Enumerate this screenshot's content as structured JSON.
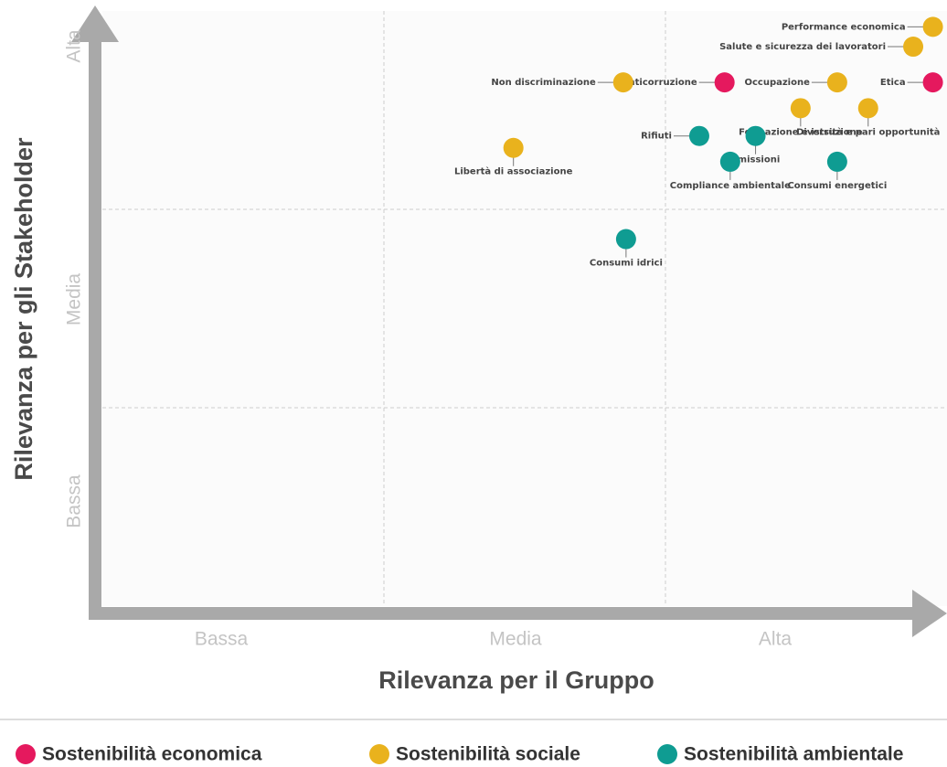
{
  "chart_data": {
    "type": "scatter",
    "xlabel": "Rilevanza per il Gruppo",
    "ylabel": "Rilevanza per gli Stakeholder",
    "xlim": [
      0,
      3
    ],
    "ylim": [
      0,
      3
    ],
    "xticks": [
      {
        "value": 0.5,
        "label": "Bassa"
      },
      {
        "value": 1.5,
        "label": "Media"
      },
      {
        "value": 2.5,
        "label": "Alta"
      }
    ],
    "yticks": [
      {
        "value": 0.5,
        "label": "Bassa"
      },
      {
        "value": 1.5,
        "label": "Media"
      },
      {
        "value": 2.5,
        "label": "Alta"
      }
    ],
    "xgrid": [
      1,
      2
    ],
    "ygrid": [
      1,
      2
    ],
    "series": [
      {
        "name": "Sostenibilità economica",
        "color": "#e5195e",
        "labels": [
          "Anticorruzione",
          "Etica"
        ],
        "x": [
          2.21,
          2.95
        ],
        "values": [
          2.64,
          2.64
        ]
      },
      {
        "name": "Sostenibilità sociale",
        "color": "#e9b21d",
        "labels": [
          "Performance economica",
          "Salute e sicurezza dei lavoratori",
          "Non discriminazione",
          "Occupazione",
          "Formazione e istruzione",
          "Diversità e pari opportunità",
          "Libertà di associazione"
        ],
        "x": [
          2.95,
          2.88,
          1.85,
          2.61,
          2.48,
          2.72,
          1.46
        ],
        "values": [
          2.92,
          2.82,
          2.64,
          2.64,
          2.51,
          2.51,
          2.31
        ]
      },
      {
        "name": "Sostenibilità ambientale",
        "color": "#0f9c92",
        "labels": [
          "Rifiuti",
          "Emissioni",
          "Compliance ambientale",
          "Consumi energetici",
          "Consumi idrici"
        ],
        "x": [
          2.12,
          2.32,
          2.23,
          2.61,
          1.86
        ],
        "values": [
          2.37,
          2.37,
          2.24,
          2.24,
          1.85
        ]
      }
    ]
  }
}
